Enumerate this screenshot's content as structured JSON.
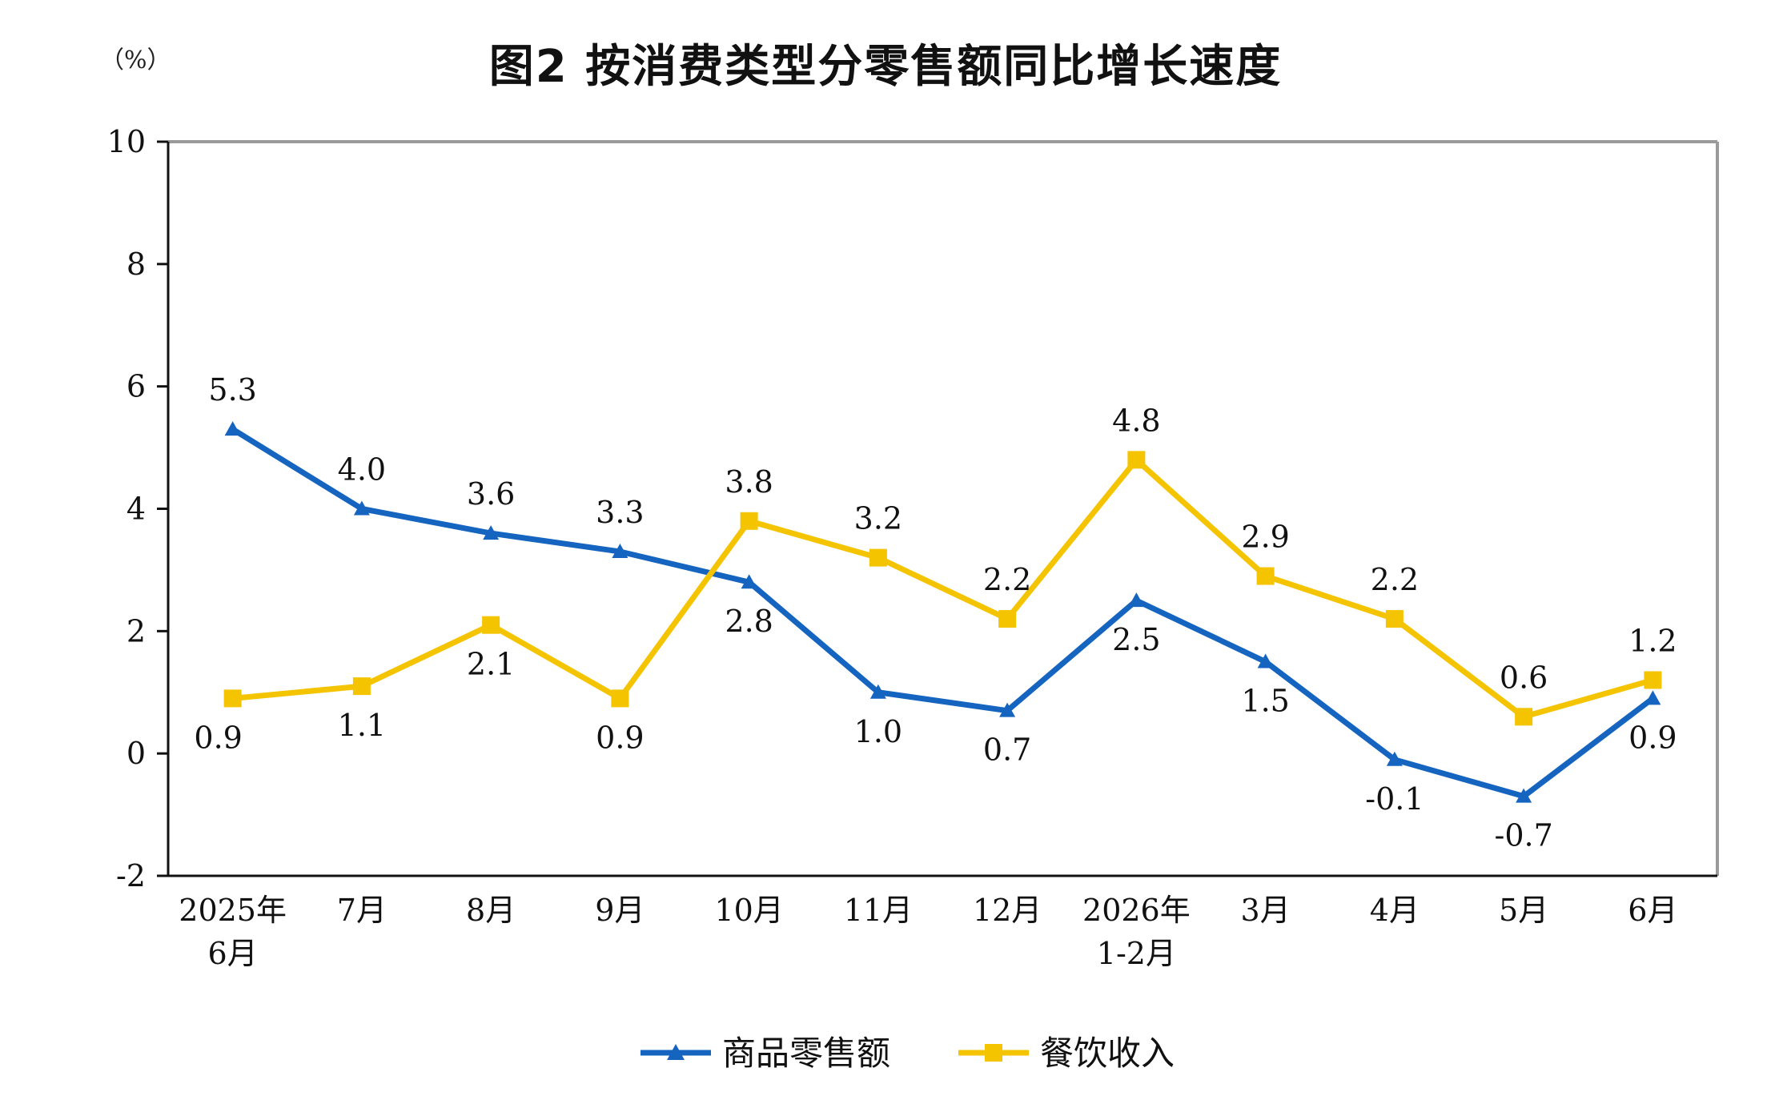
{
  "chart_data": {
    "type": "line",
    "title": "图2  按消费类型分零售额同比增长速度",
    "unit": "（%）",
    "ylim": [
      -2,
      10
    ],
    "yticks": [
      "-2",
      "0",
      "2",
      "4",
      "6",
      "8",
      "10"
    ],
    "grid": false,
    "legend_position": "bottom-center",
    "categories": [
      [
        "2025年",
        "6月"
      ],
      [
        "7月"
      ],
      [
        "8月"
      ],
      [
        "9月"
      ],
      [
        "10月"
      ],
      [
        "11月"
      ],
      [
        "12月"
      ],
      [
        "2026年",
        "1-2月"
      ],
      [
        "3月"
      ],
      [
        "4月"
      ],
      [
        "5月"
      ],
      [
        "6月"
      ]
    ],
    "series": [
      {
        "name": "商品零售额",
        "color": "#1565C0",
        "marker": "triangle",
        "values": [
          5.3,
          4.0,
          3.6,
          3.3,
          2.8,
          1.0,
          0.7,
          2.5,
          1.5,
          -0.1,
          -0.7,
          0.9
        ],
        "labels": [
          "5.3",
          "4.0",
          "3.6",
          "3.3",
          "2.8",
          "1.0",
          "0.7",
          "2.5",
          "1.5",
          "-0.1",
          "-0.7",
          "0.9"
        ]
      },
      {
        "name": "餐饮收入",
        "color": "#F5C400",
        "marker": "square",
        "values": [
          0.9,
          1.1,
          2.1,
          0.9,
          3.8,
          3.2,
          2.2,
          4.8,
          2.9,
          2.2,
          0.6,
          1.2
        ],
        "labels": [
          "0.9",
          "1.1",
          "2.1",
          "0.9",
          "3.8",
          "3.2",
          "2.2",
          "4.8",
          "2.9",
          "2.2",
          "0.6",
          "1.2"
        ]
      }
    ]
  }
}
